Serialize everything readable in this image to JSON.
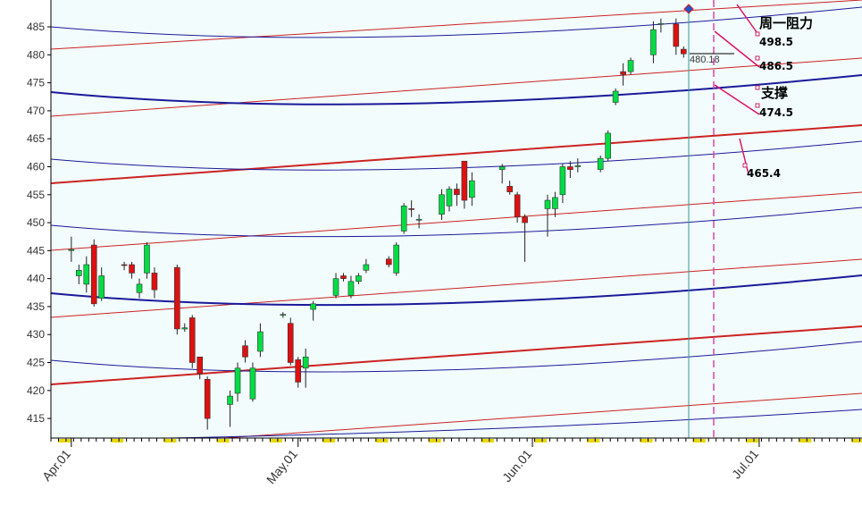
{
  "chart_data": {
    "type": "candlestick",
    "x": [
      0,
      1,
      2,
      3,
      4,
      7,
      8,
      9,
      10,
      11,
      14,
      15,
      16,
      17,
      18,
      21,
      22,
      23,
      24,
      25,
      28,
      29,
      30,
      31,
      32,
      35,
      36,
      37,
      38,
      39,
      42,
      43,
      44,
      45,
      46,
      49,
      50,
      51,
      52,
      53,
      57,
      58,
      59,
      60,
      63,
      64,
      65,
      66,
      67,
      70,
      71,
      72,
      73,
      74,
      77,
      78,
      80,
      81
    ],
    "open": [
      445,
      440.5,
      439,
      446,
      436.5,
      442.5,
      442.5,
      437.5,
      441,
      441,
      442,
      431,
      433,
      426,
      422,
      417.5,
      419.5,
      428,
      418.5,
      427,
      433.5,
      432,
      425.5,
      424,
      434.5,
      437,
      440.5,
      437,
      439.5,
      441.5,
      443.5,
      441,
      448.5,
      452.5,
      450.5,
      451.5,
      453,
      456,
      461,
      454.5,
      459.5,
      456.5,
      455,
      451,
      452.5,
      452.5,
      455,
      460,
      460,
      459.5,
      461.5,
      471.5,
      477,
      477,
      480,
      485.5,
      485.5,
      481
    ],
    "high": [
      447.5,
      442.5,
      444,
      447,
      442,
      443,
      443,
      440,
      446.5,
      442,
      442.5,
      432,
      433.5,
      426,
      422.5,
      420,
      425,
      429,
      425,
      432,
      434,
      433,
      426,
      427.5,
      436,
      441,
      441,
      440.5,
      441,
      443.5,
      444,
      446.5,
      453.5,
      454,
      451.5,
      456,
      456.5,
      457,
      461,
      459,
      460.5,
      457.5,
      455.5,
      451.5,
      455,
      455.5,
      460.5,
      461,
      461.5,
      462,
      466.5,
      474,
      478.5,
      479.5,
      486,
      486.5,
      486.5,
      481.5
    ],
    "low": [
      443,
      439,
      437.5,
      435,
      436,
      441.5,
      440,
      436.5,
      440,
      436.5,
      430,
      430.5,
      424,
      422,
      413,
      413.5,
      418,
      425,
      418,
      426,
      433,
      424.5,
      420.5,
      420.5,
      432.5,
      436.5,
      439.5,
      436.5,
      439,
      441,
      442,
      440.5,
      448,
      451,
      449,
      450.5,
      452,
      453,
      452.5,
      453,
      457,
      455,
      450,
      443,
      447.5,
      451,
      453.5,
      458,
      459,
      459,
      461,
      471,
      474.5,
      476.5,
      478.5,
      484,
      480,
      479.5
    ],
    "close": [
      445.2,
      441.5,
      442.5,
      435.5,
      440.5,
      442.4,
      441,
      439,
      446,
      438,
      431,
      431.2,
      425,
      423,
      415,
      419,
      424,
      426,
      424,
      430.5,
      433.6,
      425,
      421.5,
      426,
      435.5,
      440,
      440,
      439.5,
      440.5,
      442.5,
      442.5,
      446,
      453,
      452.4,
      450.6,
      455,
      456,
      455,
      454,
      457.5,
      460,
      455.5,
      451,
      450,
      454,
      454.5,
      460,
      459.5,
      460.2,
      461.5,
      466,
      473.5,
      476.5,
      479,
      484.5,
      485.6,
      481.5,
      480.18
    ],
    "up_color": "#00dd44",
    "down_color": "#dd1111",
    "xlim": [
      -2.7,
      104.6
    ],
    "ylim": [
      411.5,
      489.8
    ],
    "xticks": [
      {
        "value": 0,
        "label": "Apr.01"
      },
      {
        "value": 30,
        "label": "May.01"
      },
      {
        "value": 61,
        "label": "Jun.01"
      },
      {
        "value": 91,
        "label": "Jul.01"
      }
    ],
    "yticks": [
      415,
      420,
      425,
      430,
      435,
      440,
      445,
      450,
      455,
      460,
      465,
      470,
      475,
      480,
      485
    ],
    "annotations": [
      "周一阻力",
      "498.5",
      "486.5",
      "支撑",
      "474.5",
      "465.4"
    ],
    "last_price_label": "480.18"
  }
}
